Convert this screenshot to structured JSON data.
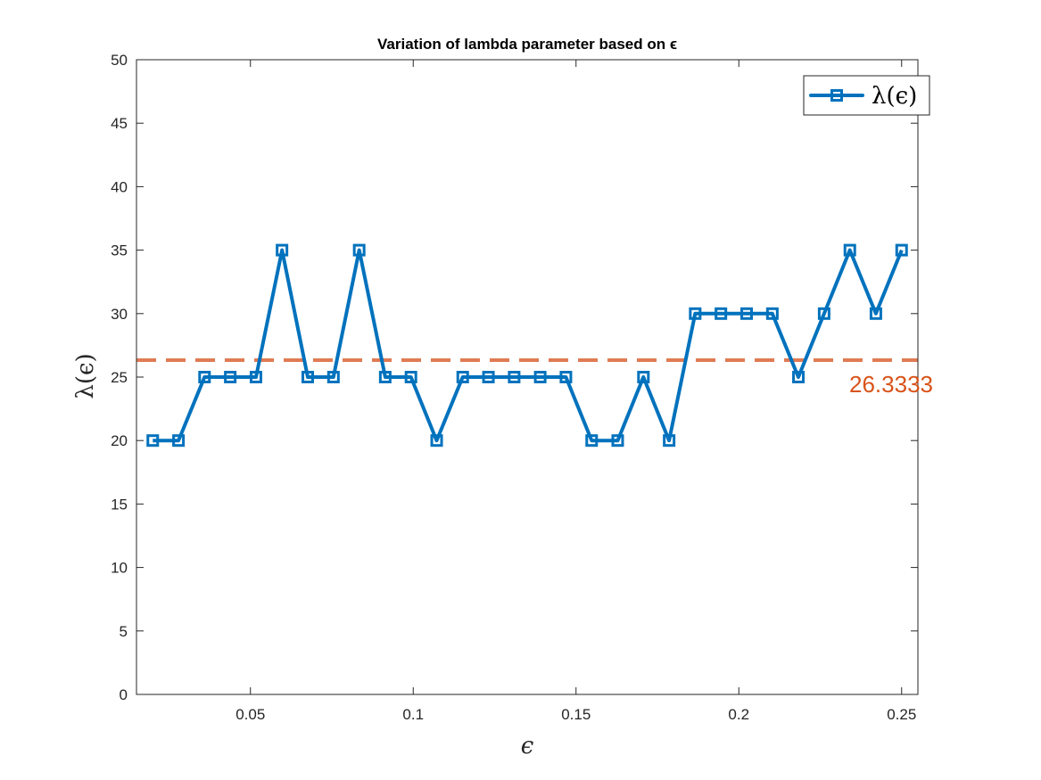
{
  "colors": {
    "series": "#0072BD",
    "reference": "#D95319",
    "reference_line": "#E07B54",
    "axis": "#262626",
    "background": "#ffffff"
  },
  "chart_data": {
    "type": "line",
    "title": "Variation of lambda parameter based on ϵ",
    "xlabel": "ϵ",
    "ylabel": "λ(ϵ)",
    "xlim": [
      0.015,
      0.255
    ],
    "ylim": [
      0,
      50
    ],
    "x_ticks": [
      0.05,
      0.1,
      0.15,
      0.2,
      0.25
    ],
    "y_ticks": [
      0,
      5,
      10,
      15,
      20,
      25,
      30,
      35,
      40,
      45,
      50
    ],
    "grid": false,
    "legend_position": "top-right",
    "marker": "square",
    "series": [
      {
        "name": "λ(ϵ)",
        "x": [
          0.02,
          0.0279,
          0.0359,
          0.0438,
          0.0517,
          0.0597,
          0.0676,
          0.0755,
          0.0834,
          0.0914,
          0.0993,
          0.1072,
          0.1152,
          0.1231,
          0.131,
          0.139,
          0.1469,
          0.1548,
          0.1628,
          0.1707,
          0.1786,
          0.1866,
          0.1945,
          0.2024,
          0.2103,
          0.2183,
          0.2262,
          0.2341,
          0.2421,
          0.25
        ],
        "values": [
          20,
          20,
          25,
          25,
          25,
          35,
          25,
          25,
          35,
          25,
          25,
          20,
          25,
          25,
          25,
          25,
          25,
          20,
          20,
          25,
          20,
          30,
          30,
          30,
          30,
          25,
          30,
          35,
          30,
          35
        ]
      }
    ],
    "reference_line": {
      "y": 26.3333,
      "style": "dashed",
      "label": "26.3333"
    }
  }
}
